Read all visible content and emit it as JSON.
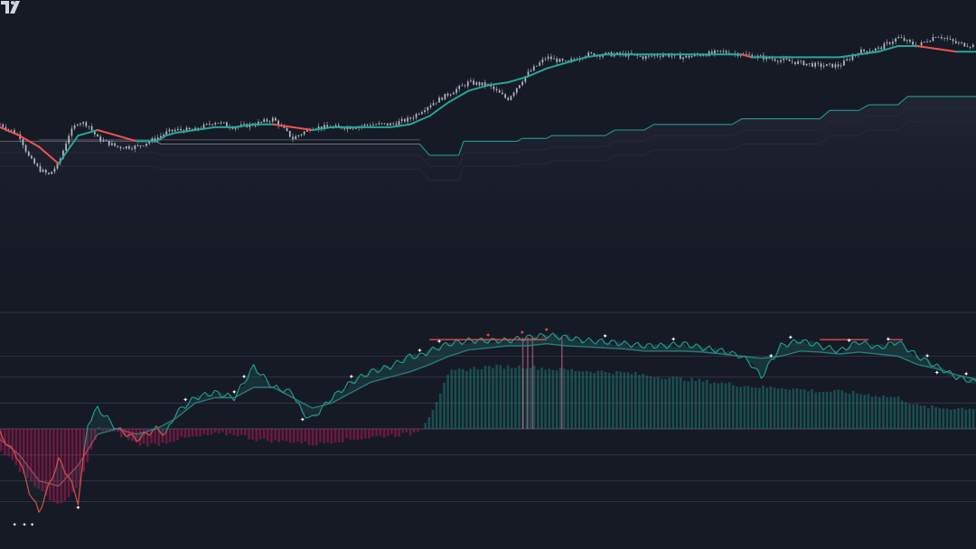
{
  "colors": {
    "background": "#161a25",
    "pane_divider": "#2a2e39",
    "bull": "#26a69a",
    "bear": "#ef5350",
    "candle": "#c8ccd6",
    "osc_bull_fill": "#1f8f86",
    "osc_bear_fill": "#c2185b",
    "level_line": "#3a3f4d",
    "marker": "#ffffff",
    "logo": "#d1d4dc"
  },
  "icons": {
    "logo": "tradingview-logo-icon"
  },
  "chart_data": [
    {
      "type": "line",
      "pane": "price",
      "grid": false,
      "axes_visible": false,
      "ylim": [
        0,
        100
      ],
      "xlim": [
        0,
        100
      ],
      "series": [
        {
          "role": "price",
          "x": [
            0,
            2,
            3,
            4,
            5,
            6,
            7,
            8,
            9,
            10,
            12,
            14,
            16,
            17,
            18,
            20,
            22,
            24,
            26,
            28,
            30,
            31,
            32,
            34,
            36,
            38,
            40,
            42,
            44,
            46,
            48,
            50,
            52,
            54,
            56,
            58,
            60,
            62,
            64,
            66,
            68,
            70,
            72,
            74,
            76,
            78,
            80,
            82,
            84,
            86,
            88,
            90,
            92,
            94,
            96,
            98,
            100
          ],
          "values": [
            62,
            58,
            50,
            46,
            44,
            48,
            58,
            63,
            62,
            57,
            54,
            54,
            57,
            59,
            60,
            60,
            63,
            61,
            62,
            64,
            57,
            59,
            61,
            61,
            61,
            62,
            62,
            64,
            69,
            73,
            77,
            76,
            71,
            80,
            86,
            84,
            87,
            87,
            87,
            86,
            87,
            86,
            87,
            88,
            87,
            86,
            85,
            84,
            83,
            83,
            88,
            89,
            93,
            90,
            94,
            91,
            90
          ]
        },
        {
          "role": "trend-line",
          "x": [
            0,
            2,
            4,
            6,
            8,
            10,
            12,
            14,
            16,
            17,
            18,
            20,
            22,
            24,
            26,
            28,
            30,
            32,
            34,
            36,
            38,
            40,
            42,
            44,
            46,
            48,
            50,
            52,
            54,
            56,
            58,
            60,
            62,
            64,
            66,
            68,
            70,
            72,
            74,
            76,
            77,
            78,
            80,
            82,
            84,
            86,
            88,
            90,
            92,
            94,
            96,
            98,
            100
          ],
          "values": [
            61,
            58,
            54,
            48,
            58,
            60,
            58,
            56,
            56,
            58,
            59,
            60,
            61,
            61,
            62,
            62,
            61,
            60,
            61,
            61,
            61,
            61,
            62,
            65,
            70,
            74,
            76,
            77,
            79,
            82,
            84,
            86,
            87,
            87,
            87,
            87,
            87,
            87,
            87,
            87,
            86,
            86,
            86,
            86,
            86,
            86,
            87,
            88,
            90,
            90,
            89,
            88,
            88
          ]
        },
        {
          "role": "support-band",
          "x": [
            0,
            16,
            16.5,
            30,
            30.5,
            43,
            44,
            47,
            47.5,
            53,
            53.5,
            56,
            56.5,
            62,
            63,
            66,
            67,
            75,
            76,
            84,
            85,
            88,
            89,
            92,
            93,
            100
          ],
          "values": [
            56,
            56,
            55,
            55,
            55,
            55,
            51,
            51,
            56,
            56,
            57,
            57,
            58,
            58,
            60,
            60,
            62,
            62,
            64,
            64,
            67,
            67,
            69,
            69,
            72,
            72
          ]
        }
      ]
    },
    {
      "type": "line",
      "pane": "oscillator",
      "grid": false,
      "axes_visible": false,
      "ylim": [
        -100,
        100
      ],
      "xlim": [
        0,
        100
      ],
      "levels": [
        70,
        50,
        25,
        0,
        -25,
        -50,
        -70
      ],
      "series": [
        {
          "role": "oscillator",
          "x": [
            0,
            2,
            3,
            4,
            5,
            6,
            7,
            8,
            9,
            10,
            12,
            14,
            16,
            17,
            18,
            20,
            22,
            24,
            26,
            28,
            30,
            31,
            32,
            34,
            36,
            38,
            40,
            42,
            43,
            44,
            46,
            48,
            50,
            52,
            54,
            56,
            58,
            60,
            62,
            64,
            66,
            68,
            70,
            72,
            74,
            76,
            77,
            78,
            80,
            82,
            84,
            86,
            88,
            90,
            92,
            94,
            96,
            98,
            100
          ],
          "values": [
            -5,
            -30,
            -60,
            -80,
            -55,
            -30,
            -45,
            -70,
            5,
            20,
            0,
            -10,
            0,
            -5,
            15,
            30,
            35,
            30,
            60,
            40,
            35,
            15,
            10,
            30,
            45,
            55,
            60,
            70,
            70,
            75,
            82,
            85,
            85,
            85,
            88,
            90,
            88,
            85,
            84,
            82,
            80,
            80,
            82,
            78,
            75,
            70,
            62,
            50,
            80,
            85,
            80,
            75,
            84,
            78,
            84,
            70,
            60,
            50,
            45
          ]
        },
        {
          "role": "signal",
          "x": [
            0,
            2,
            4,
            6,
            8,
            10,
            12,
            14,
            16,
            18,
            20,
            22,
            24,
            26,
            28,
            30,
            32,
            34,
            36,
            38,
            40,
            42,
            44,
            46,
            48,
            50,
            52,
            54,
            56,
            58,
            60,
            62,
            64,
            66,
            68,
            70,
            72,
            74,
            76,
            78,
            80,
            82,
            84,
            86,
            88,
            90,
            92,
            94,
            96,
            98,
            100
          ],
          "values": [
            -10,
            -25,
            -50,
            -55,
            -35,
            -5,
            0,
            -5,
            0,
            10,
            25,
            30,
            30,
            40,
            40,
            30,
            20,
            25,
            35,
            45,
            50,
            55,
            62,
            70,
            76,
            78,
            80,
            80,
            82,
            80,
            79,
            78,
            77,
            75,
            75,
            75,
            74,
            72,
            70,
            68,
            70,
            75,
            74,
            72,
            74,
            72,
            70,
            62,
            58,
            52,
            48
          ]
        },
        {
          "role": "histogram",
          "x": [
            0,
            2,
            4,
            6,
            8,
            10,
            12,
            14,
            16,
            18,
            20,
            22,
            24,
            26,
            28,
            30,
            32,
            34,
            36,
            38,
            40,
            42,
            43,
            44,
            46,
            48,
            50,
            52,
            54,
            56,
            58,
            60,
            62,
            64,
            66,
            68,
            70,
            72,
            74,
            76,
            78,
            80,
            82,
            84,
            86,
            88,
            90,
            92,
            94,
            96,
            98,
            100
          ],
          "values": [
            -20,
            -40,
            -60,
            -75,
            -55,
            0,
            -5,
            -15,
            -15,
            -10,
            -8,
            -5,
            -5,
            -10,
            -12,
            -12,
            -15,
            -12,
            -10,
            -8,
            -6,
            -5,
            0,
            15,
            55,
            58,
            60,
            60,
            60,
            58,
            57,
            56,
            55,
            54,
            52,
            50,
            48,
            46,
            44,
            42,
            40,
            40,
            38,
            36,
            36,
            34,
            32,
            30,
            22,
            20,
            20,
            20
          ]
        }
      ],
      "markers": {
        "peaks": [
          19,
          24,
          25,
          36,
          43,
          45,
          50,
          53.5,
          56,
          62,
          69,
          79,
          81,
          87,
          91,
          95,
          99
        ],
        "troughs": [
          8,
          31,
          96
        ]
      }
    }
  ]
}
